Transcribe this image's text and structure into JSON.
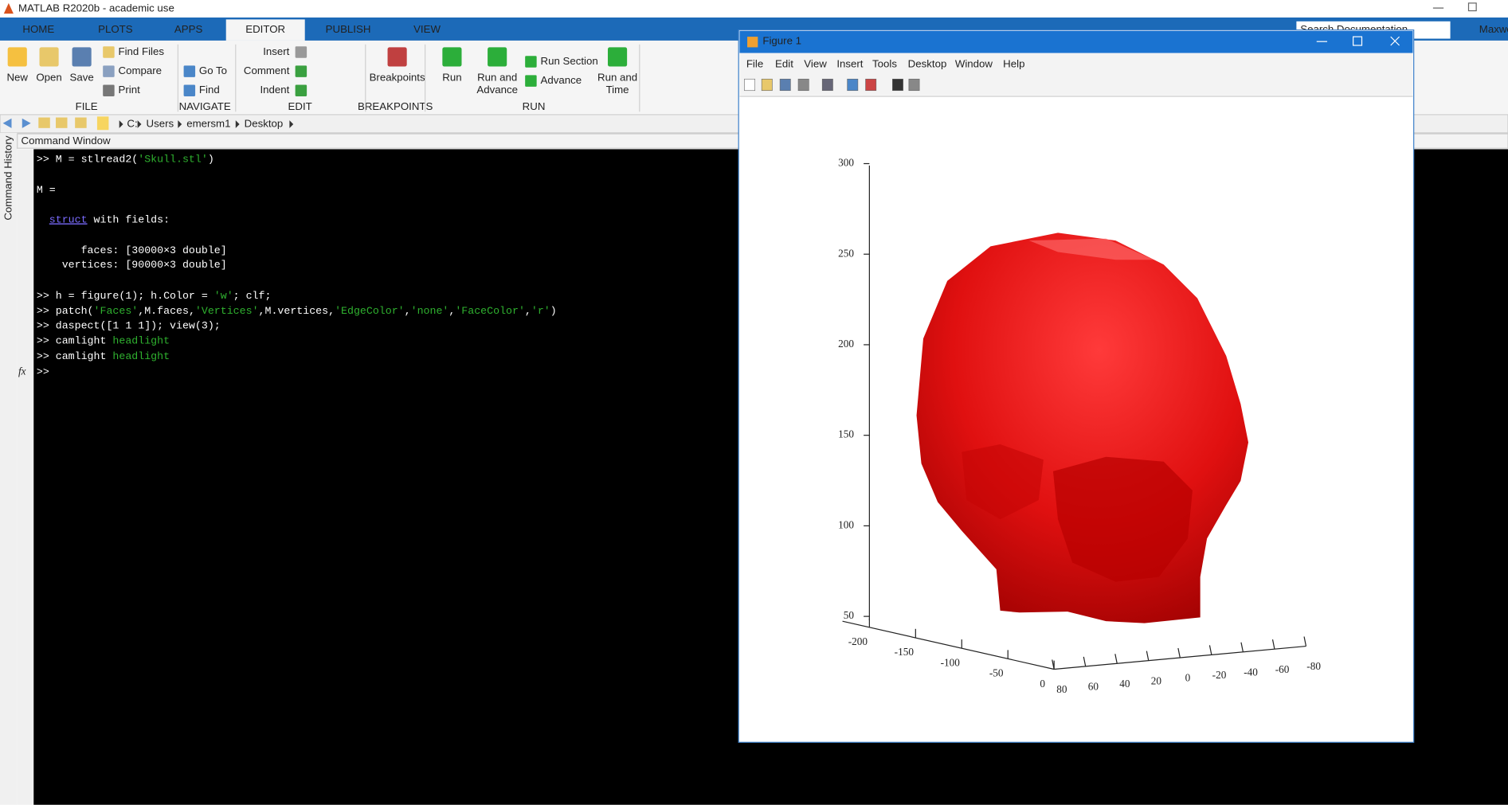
{
  "window_title": "MATLAB R2020b - academic use",
  "tabs": [
    "HOME",
    "PLOTS",
    "APPS",
    "EDITOR",
    "PUBLISH",
    "VIEW"
  ],
  "active_tab": 3,
  "toolstrip": {
    "buttons": [
      [
        "New"
      ],
      [
        "Open"
      ],
      [
        "Save"
      ],
      [
        "Find Files"
      ],
      [
        "Compare"
      ],
      [
        "Print"
      ],
      [
        "Go To"
      ],
      [
        "Find"
      ],
      [
        "Insert"
      ],
      [
        "Comment"
      ],
      [
        "Indent"
      ],
      [
        "Breakpoints"
      ],
      [
        "Run"
      ],
      [
        "Run and",
        "Advance"
      ],
      [
        "Run Section"
      ],
      [
        "Advance"
      ],
      [
        "Run and",
        "Time"
      ]
    ],
    "groups": [
      "FILE",
      "NAVIGATE",
      "EDIT",
      "BREAKPOINTS",
      "RUN"
    ]
  },
  "search_placeholder": "Search Documentation",
  "user": "Maxwe",
  "path": [
    "C:",
    "Users",
    "emersm1",
    "Desktop"
  ],
  "command_history_label": "Command History",
  "command_window": {
    "title": "Command Window",
    "default_color": "#ffffff",
    "lines": [
      [
        {
          "text": ">> M = stlread2("
        },
        {
          "text": "'Skull.stl'",
          "color": "#2fb12f"
        },
        {
          "text": ")"
        }
      ],
      [
        {
          "text": "M ="
        }
      ],
      [
        {
          "text": "  "
        },
        {
          "text": "struct",
          "color": "#7b6cff",
          "underline": true
        },
        {
          "text": " with fields:"
        }
      ],
      [
        {
          "text": "       faces: [30000×3 double]"
        }
      ],
      [
        {
          "text": "    vertices: [90000×3 double]"
        }
      ],
      [
        {
          "text": ">> h = figure(1); h.Color = "
        },
        {
          "text": "'w'",
          "color": "#2fb12f"
        },
        {
          "text": "; clf;"
        }
      ],
      [
        {
          "text": ">> patch("
        },
        {
          "text": "'Faces'",
          "color": "#2fb12f"
        },
        {
          "text": ",M.faces,"
        },
        {
          "text": "'Vertices'",
          "color": "#2fb12f"
        },
        {
          "text": ",M.vertices,"
        },
        {
          "text": "'EdgeColor'",
          "color": "#2fb12f"
        },
        {
          "text": ","
        },
        {
          "text": "'none'",
          "color": "#2fb12f"
        },
        {
          "text": ","
        },
        {
          "text": "'FaceColor'",
          "color": "#2fb12f"
        },
        {
          "text": ","
        },
        {
          "text": "'r'",
          "color": "#2fb12f"
        },
        {
          "text": ")"
        }
      ],
      [
        {
          "text": ">> daspect([1 1 1]); view(3);"
        }
      ],
      [
        {
          "text": ">> camlight "
        },
        {
          "text": "headlight",
          "color": "#2fb12f"
        }
      ],
      [
        {
          "text": ">> camlight "
        },
        {
          "text": "headlight",
          "color": "#2fb12f"
        }
      ],
      [
        {
          "text": ">>"
        }
      ]
    ]
  },
  "figure": {
    "title": "Figure 1",
    "menu": [
      "File",
      "Edit",
      "View",
      "Insert",
      "Tools",
      "Desktop",
      "Window",
      "Help"
    ],
    "axes": {
      "zticks": [
        300,
        250,
        200,
        150,
        100,
        50
      ],
      "xticks": [
        -200,
        -150,
        -100,
        -50,
        0
      ],
      "yticks": [
        80,
        60,
        40,
        20,
        0,
        -20,
        -40,
        -60,
        -80
      ]
    }
  }
}
